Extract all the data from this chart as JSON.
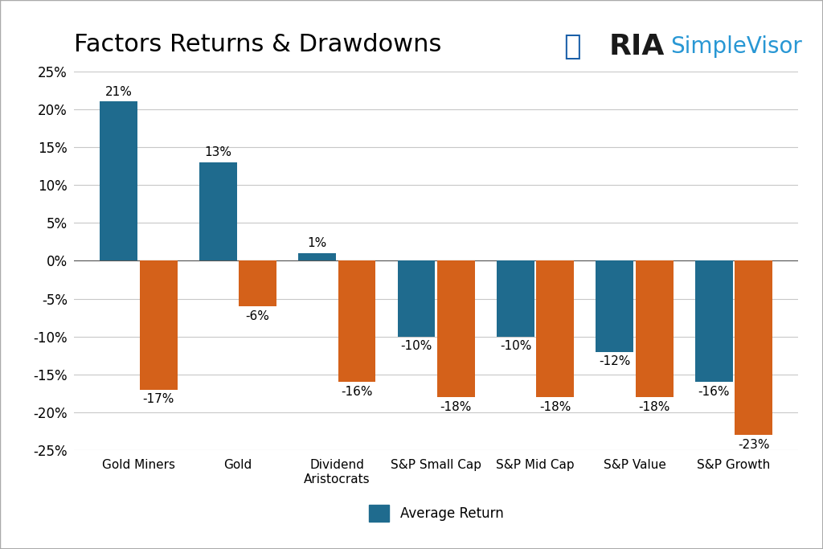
{
  "title": "Factors Returns & Drawdowns",
  "categories": [
    "Gold Miners",
    "Gold",
    "Dividend\nAristocrats",
    "S&P Small Cap",
    "S&P Mid Cap",
    "S&P Value",
    "S&P Growth"
  ],
  "avg_returns": [
    21,
    13,
    1,
    -10,
    -10,
    -12,
    -16
  ],
  "drawdowns": [
    -17,
    -6,
    -16,
    -18,
    -18,
    -18,
    -23
  ],
  "bar_color_return": "#1f6b8e",
  "bar_color_drawdown": "#d4611a",
  "ylim": [
    -25,
    25
  ],
  "yticks": [
    -25,
    -20,
    -15,
    -10,
    -5,
    0,
    5,
    10,
    15,
    20,
    25
  ],
  "legend_return_label": "Average Return",
  "background_color": "#ffffff",
  "grid_color": "#c8c8c8",
  "title_fontsize": 22,
  "label_fontsize": 11,
  "tick_fontsize": 12,
  "bar_width": 0.38,
  "bar_gap": 0.02,
  "ria_color": "#1a1a1a",
  "simplevisor_color": "#2897d4"
}
